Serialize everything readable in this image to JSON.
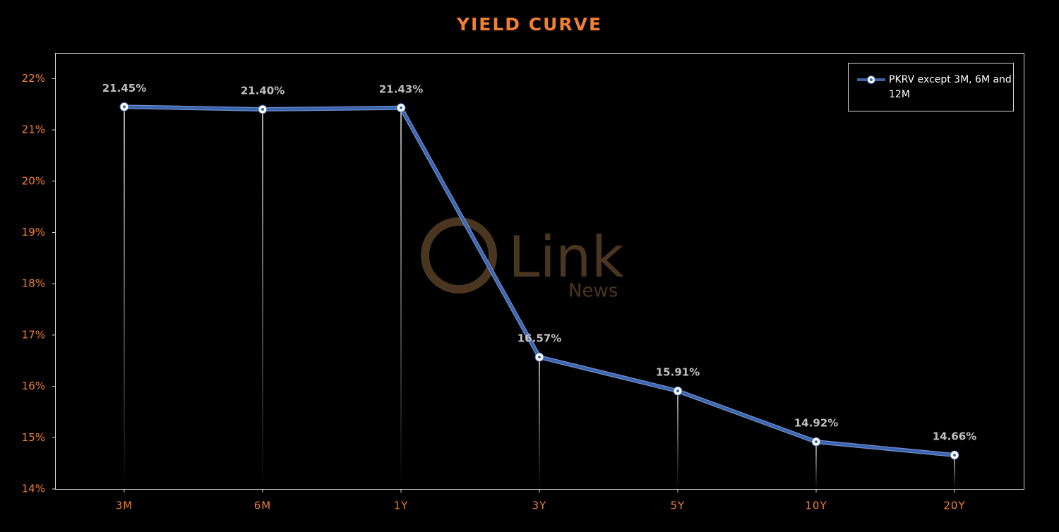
{
  "chart_data": {
    "type": "line",
    "title": "YIELD CURVE",
    "categories": [
      "3M",
      "6M",
      "1Y",
      "3Y",
      "5Y",
      "10Y",
      "20Y"
    ],
    "series": [
      {
        "name": "PKRV except 3M, 6M and 12M",
        "color": "#3b64ad",
        "values": [
          21.45,
          21.4,
          21.43,
          16.57,
          15.91,
          14.92,
          14.66
        ],
        "value_labels": [
          "21.45%",
          "21.40%",
          "21.43%",
          "16.57%",
          "15.91%",
          "14.92%",
          "14.66%"
        ]
      }
    ],
    "ylim": [
      14,
      22.5
    ],
    "yticks": [
      {
        "value": 14,
        "label": "14%"
      },
      {
        "value": 15,
        "label": "15%"
      },
      {
        "value": 16,
        "label": "16%"
      },
      {
        "value": 17,
        "label": "17%"
      },
      {
        "value": 18,
        "label": "18%"
      },
      {
        "value": 19,
        "label": "19%"
      },
      {
        "value": 20,
        "label": "20%"
      },
      {
        "value": 21,
        "label": "21%"
      },
      {
        "value": 22,
        "label": "22%"
      }
    ],
    "grid": false,
    "legend": "top-right",
    "watermark": [
      "Link",
      "News"
    ]
  }
}
